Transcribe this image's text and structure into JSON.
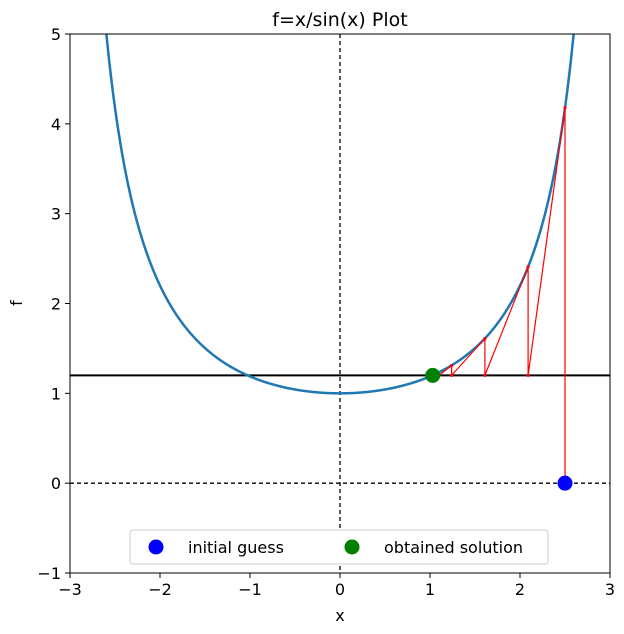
{
  "chart_data": {
    "type": "line",
    "title": "f=x/sin(x) Plot",
    "xlabel": "x",
    "ylabel": "f",
    "xlim": [
      -3,
      3
    ],
    "ylim": [
      -1,
      5
    ],
    "xticks": [
      "−3",
      "−2",
      "−1",
      "0",
      "1",
      "2",
      "3"
    ],
    "yticks": [
      "−1",
      "0",
      "1",
      "2",
      "3",
      "4",
      "5"
    ],
    "grid": false,
    "legend_position": "lower-center",
    "series": [
      {
        "name": "",
        "kind": "curve",
        "function": "x/sin(x)",
        "x_range": [
          -2.63,
          2.63
        ],
        "color": "#1f77b4"
      },
      {
        "name": "",
        "kind": "iteration-path",
        "color": "#ff0000",
        "points": [
          [
            2.5,
            0
          ],
          [
            2.5,
            4.18
          ],
          [
            2.09,
            1.2
          ],
          [
            2.09,
            2.41
          ],
          [
            1.61,
            1.2
          ],
          [
            1.61,
            1.61
          ],
          [
            1.24,
            1.2
          ],
          [
            1.24,
            1.31
          ],
          [
            1.1,
            1.2
          ],
          [
            1.05,
            1.21
          ],
          [
            1.04,
            1.2
          ]
        ]
      },
      {
        "name": "initial guess",
        "kind": "marker",
        "x": 2.5,
        "y": 0,
        "color": "#0000ff"
      },
      {
        "name": "obtained solution",
        "kind": "marker",
        "x": 1.03,
        "y": 1.2,
        "color": "#008000"
      }
    ],
    "reference_lines": [
      {
        "orientation": "horizontal",
        "value": 1.2,
        "style": "solid",
        "color": "#000000"
      },
      {
        "orientation": "horizontal",
        "value": 0,
        "style": "dashed",
        "color": "#000000"
      },
      {
        "orientation": "vertical",
        "value": 0,
        "style": "dashed",
        "color": "#000000"
      }
    ]
  }
}
